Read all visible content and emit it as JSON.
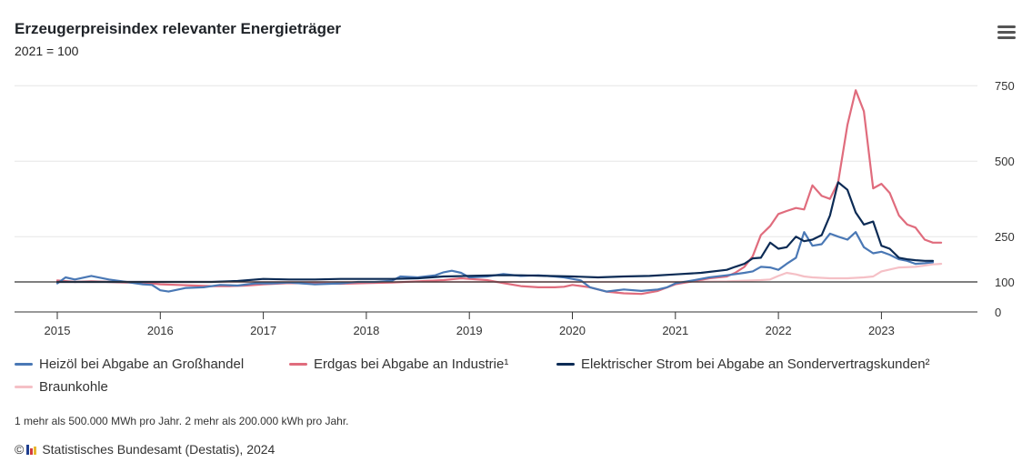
{
  "header": {
    "title": "Erzeugerpreisindex relevanter Energieträger",
    "subtitle": "2021 = 100"
  },
  "menu": {
    "icon": "hamburger-menu-icon"
  },
  "footnote": "1 mehr als 500.000 MWh pro Jahr. 2 mehr als 200.000 kWh pro Jahr.",
  "credits": {
    "copyright": "©",
    "text": "Statistisches Bundesamt (Destatis), 2024",
    "logo_colors": [
      "#1f3f8f",
      "#d23c3c",
      "#e8b830"
    ]
  },
  "colors": {
    "grid": "#e6e6e6",
    "baseline": "#333333",
    "axis": "#333333"
  },
  "chart_data": {
    "type": "line",
    "title": "Erzeugerpreisindex relevanter Energieträger",
    "subtitle": "2021 = 100",
    "xlabel": "",
    "ylabel": "",
    "x_ticks": [
      "2015",
      "2016",
      "2017",
      "2018",
      "2019",
      "2020",
      "2021",
      "2022",
      "2023"
    ],
    "y_ticks": [
      "0",
      "100",
      "250",
      "500",
      "750"
    ],
    "y_tick_values": [
      0,
      100,
      250,
      500,
      750
    ],
    "y_scale_note": "index, 2021 = 100",
    "xlim": [
      2015.0,
      2023.6
    ],
    "ylim": [
      0,
      750
    ],
    "grid": true,
    "legend_position": "bottom",
    "series": [
      {
        "name": "Heizöl bei Abgabe an Großhandel",
        "color": "#4a78b5",
        "points": [
          [
            2015.0,
            95
          ],
          [
            2015.08,
            115
          ],
          [
            2015.17,
            108
          ],
          [
            2015.33,
            120
          ],
          [
            2015.5,
            108
          ],
          [
            2015.67,
            100
          ],
          [
            2015.83,
            92
          ],
          [
            2015.92,
            90
          ],
          [
            2016.0,
            72
          ],
          [
            2016.08,
            68
          ],
          [
            2016.25,
            80
          ],
          [
            2016.42,
            82
          ],
          [
            2016.58,
            90
          ],
          [
            2016.75,
            88
          ],
          [
            2016.92,
            95
          ],
          [
            2017.08,
            95
          ],
          [
            2017.25,
            98
          ],
          [
            2017.5,
            92
          ],
          [
            2017.75,
            95
          ],
          [
            2017.92,
            100
          ],
          [
            2018.08,
            100
          ],
          [
            2018.25,
            104
          ],
          [
            2018.33,
            118
          ],
          [
            2018.5,
            115
          ],
          [
            2018.67,
            122
          ],
          [
            2018.75,
            132
          ],
          [
            2018.83,
            137
          ],
          [
            2018.92,
            130
          ],
          [
            2019.0,
            115
          ],
          [
            2019.17,
            118
          ],
          [
            2019.33,
            126
          ],
          [
            2019.5,
            120
          ],
          [
            2019.67,
            122
          ],
          [
            2019.83,
            118
          ],
          [
            2019.92,
            115
          ],
          [
            2020.0,
            110
          ],
          [
            2020.08,
            105
          ],
          [
            2020.17,
            82
          ],
          [
            2020.33,
            68
          ],
          [
            2020.5,
            75
          ],
          [
            2020.67,
            70
          ],
          [
            2020.83,
            75
          ],
          [
            2020.92,
            82
          ],
          [
            2021.0,
            95
          ],
          [
            2021.17,
            105
          ],
          [
            2021.33,
            115
          ],
          [
            2021.5,
            122
          ],
          [
            2021.67,
            130
          ],
          [
            2021.75,
            135
          ],
          [
            2021.83,
            150
          ],
          [
            2021.92,
            148
          ],
          [
            2022.0,
            140
          ],
          [
            2022.08,
            160
          ],
          [
            2022.17,
            180
          ],
          [
            2022.25,
            265
          ],
          [
            2022.33,
            220
          ],
          [
            2022.42,
            225
          ],
          [
            2022.5,
            260
          ],
          [
            2022.58,
            250
          ],
          [
            2022.67,
            240
          ],
          [
            2022.75,
            265
          ],
          [
            2022.83,
            215
          ],
          [
            2022.92,
            195
          ],
          [
            2023.0,
            200
          ],
          [
            2023.08,
            190
          ],
          [
            2023.17,
            175
          ],
          [
            2023.25,
            170
          ],
          [
            2023.33,
            160
          ],
          [
            2023.42,
            162
          ],
          [
            2023.5,
            165
          ]
        ]
      },
      {
        "name": "Erdgas bei Abgabe an Industrie¹",
        "color": "#e06c7d",
        "points": [
          [
            2015.0,
            105
          ],
          [
            2015.17,
            100
          ],
          [
            2015.33,
            102
          ],
          [
            2015.5,
            100
          ],
          [
            2015.67,
            98
          ],
          [
            2015.83,
            98
          ],
          [
            2016.0,
            92
          ],
          [
            2016.17,
            90
          ],
          [
            2016.33,
            88
          ],
          [
            2016.5,
            86
          ],
          [
            2016.67,
            86
          ],
          [
            2016.83,
            88
          ],
          [
            2017.0,
            92
          ],
          [
            2017.25,
            96
          ],
          [
            2017.5,
            95
          ],
          [
            2017.75,
            94
          ],
          [
            2018.0,
            96
          ],
          [
            2018.25,
            98
          ],
          [
            2018.5,
            102
          ],
          [
            2018.75,
            106
          ],
          [
            2018.92,
            112
          ],
          [
            2019.0,
            110
          ],
          [
            2019.17,
            106
          ],
          [
            2019.33,
            96
          ],
          [
            2019.5,
            86
          ],
          [
            2019.67,
            82
          ],
          [
            2019.83,
            82
          ],
          [
            2019.92,
            84
          ],
          [
            2020.0,
            90
          ],
          [
            2020.17,
            82
          ],
          [
            2020.33,
            68
          ],
          [
            2020.5,
            62
          ],
          [
            2020.67,
            60
          ],
          [
            2020.83,
            70
          ],
          [
            2021.0,
            92
          ],
          [
            2021.17,
            102
          ],
          [
            2021.33,
            112
          ],
          [
            2021.5,
            118
          ],
          [
            2021.58,
            130
          ],
          [
            2021.67,
            150
          ],
          [
            2021.75,
            185
          ],
          [
            2021.83,
            255
          ],
          [
            2021.92,
            285
          ],
          [
            2022.0,
            325
          ],
          [
            2022.08,
            335
          ],
          [
            2022.17,
            345
          ],
          [
            2022.25,
            340
          ],
          [
            2022.33,
            420
          ],
          [
            2022.42,
            385
          ],
          [
            2022.5,
            375
          ],
          [
            2022.58,
            430
          ],
          [
            2022.67,
            620
          ],
          [
            2022.75,
            735
          ],
          [
            2022.83,
            665
          ],
          [
            2022.92,
            410
          ],
          [
            2023.0,
            425
          ],
          [
            2023.08,
            395
          ],
          [
            2023.17,
            320
          ],
          [
            2023.25,
            290
          ],
          [
            2023.33,
            280
          ],
          [
            2023.42,
            240
          ],
          [
            2023.5,
            230
          ],
          [
            2023.58,
            230
          ]
        ]
      },
      {
        "name": "Elektrischer Strom bei Abgabe an Sondervertragskunden²",
        "color": "#0c2b55",
        "points": [
          [
            2015.0,
            100
          ],
          [
            2015.25,
            100
          ],
          [
            2015.5,
            100
          ],
          [
            2015.75,
            100
          ],
          [
            2016.0,
            100
          ],
          [
            2016.25,
            100
          ],
          [
            2016.5,
            100
          ],
          [
            2016.75,
            103
          ],
          [
            2017.0,
            110
          ],
          [
            2017.25,
            108
          ],
          [
            2017.5,
            108
          ],
          [
            2017.75,
            110
          ],
          [
            2018.0,
            110
          ],
          [
            2018.25,
            110
          ],
          [
            2018.5,
            112
          ],
          [
            2018.75,
            118
          ],
          [
            2019.0,
            120
          ],
          [
            2019.25,
            122
          ],
          [
            2019.5,
            122
          ],
          [
            2019.75,
            120
          ],
          [
            2020.0,
            118
          ],
          [
            2020.25,
            115
          ],
          [
            2020.5,
            118
          ],
          [
            2020.75,
            120
          ],
          [
            2021.0,
            125
          ],
          [
            2021.25,
            130
          ],
          [
            2021.5,
            140
          ],
          [
            2021.58,
            150
          ],
          [
            2021.67,
            160
          ],
          [
            2021.75,
            178
          ],
          [
            2021.83,
            180
          ],
          [
            2021.92,
            230
          ],
          [
            2022.0,
            210
          ],
          [
            2022.08,
            215
          ],
          [
            2022.17,
            250
          ],
          [
            2022.25,
            235
          ],
          [
            2022.33,
            240
          ],
          [
            2022.42,
            255
          ],
          [
            2022.5,
            320
          ],
          [
            2022.58,
            430
          ],
          [
            2022.67,
            405
          ],
          [
            2022.75,
            330
          ],
          [
            2022.83,
            290
          ],
          [
            2022.92,
            300
          ],
          [
            2023.0,
            220
          ],
          [
            2023.08,
            210
          ],
          [
            2023.17,
            180
          ],
          [
            2023.25,
            175
          ],
          [
            2023.33,
            172
          ],
          [
            2023.42,
            170
          ],
          [
            2023.5,
            170
          ]
        ]
      },
      {
        "name": "Braunkohle",
        "color": "#f5c0c6",
        "points": [
          [
            2015.0,
            100
          ],
          [
            2015.5,
            100
          ],
          [
            2016.0,
            100
          ],
          [
            2016.5,
            100
          ],
          [
            2017.0,
            100
          ],
          [
            2017.5,
            100
          ],
          [
            2018.0,
            100
          ],
          [
            2018.5,
            100
          ],
          [
            2019.0,
            100
          ],
          [
            2019.5,
            100
          ],
          [
            2020.0,
            100
          ],
          [
            2020.5,
            100
          ],
          [
            2021.0,
            100
          ],
          [
            2021.5,
            102
          ],
          [
            2021.83,
            106
          ],
          [
            2021.92,
            108
          ],
          [
            2022.0,
            120
          ],
          [
            2022.08,
            130
          ],
          [
            2022.17,
            125
          ],
          [
            2022.25,
            118
          ],
          [
            2022.33,
            115
          ],
          [
            2022.5,
            112
          ],
          [
            2022.67,
            112
          ],
          [
            2022.83,
            115
          ],
          [
            2022.92,
            118
          ],
          [
            2023.0,
            135
          ],
          [
            2023.17,
            148
          ],
          [
            2023.33,
            150
          ],
          [
            2023.5,
            158
          ],
          [
            2023.58,
            160
          ]
        ]
      }
    ]
  }
}
